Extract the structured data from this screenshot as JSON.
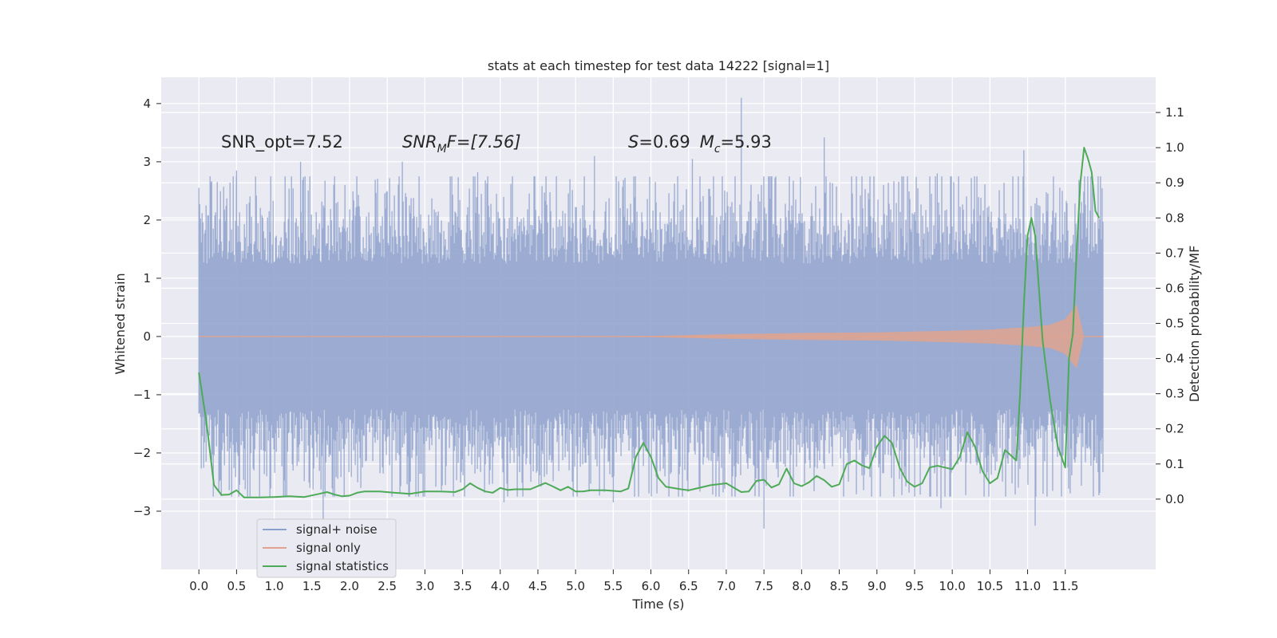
{
  "chart_data": {
    "type": "line",
    "title": "stats at each timestep for test data 14222 [signal=1]",
    "xlabel": "Time (s)",
    "ylabel": "Whitened strain",
    "ylabel_right": "Detection probability/MF",
    "xlim": [
      -0.5,
      12.7
    ],
    "ylim": [
      -4.0,
      4.45
    ],
    "ylim_right": [
      -0.2,
      1.2
    ],
    "x_ticks": [
      "0.0",
      "0.5",
      "1.0",
      "1.5",
      "2.0",
      "2.5",
      "3.0",
      "3.5",
      "4.0",
      "4.5",
      "5.0",
      "5.5",
      "6.0",
      "6.5",
      "7.0",
      "7.5",
      "8.0",
      "8.5",
      "9.0",
      "9.5",
      "10.0",
      "10.5",
      "11.0",
      "11.5"
    ],
    "y_ticks": [
      "4",
      "3",
      "2",
      "1",
      "0",
      "−1",
      "−2",
      "−3"
    ],
    "y_ticks_right": [
      "1.1",
      "1.0",
      "0.9",
      "0.8",
      "0.7",
      "0.6",
      "0.5",
      "0.4",
      "0.3",
      "0.2",
      "0.1",
      "0.0"
    ],
    "grid": true,
    "legend_position": "lower-left",
    "annotations": {
      "snr_opt": "SNR_opt=7.52",
      "snr_mf": {
        "main": "SNR",
        "sub": "M",
        "rest": "F=[7.56]"
      },
      "stat": {
        "s_label": "S",
        "s_value": "=0.69",
        "mc_label": "M",
        "mc_sub": "c",
        "mc_value": "=5.93"
      }
    },
    "series": [
      {
        "name": "signal+ noise",
        "color": "#8da0cb",
        "t_range": [
          0.0,
          12.0
        ],
        "band_std": 1.35,
        "spikes": [
          [
            0.5,
            2.85
          ],
          [
            1.35,
            3.0
          ],
          [
            2.7,
            3.0
          ],
          [
            3.7,
            2.82
          ],
          [
            5.25,
            3.1
          ],
          [
            6.55,
            3.05
          ],
          [
            7.2,
            4.1
          ],
          [
            8.3,
            3.42
          ],
          [
            9.8,
            2.8
          ],
          [
            10.95,
            3.2
          ],
          [
            11.7,
            2.1
          ],
          [
            1.65,
            -3.3
          ],
          [
            7.5,
            -3.3
          ],
          [
            11.1,
            -3.25
          ],
          [
            9.85,
            -2.95
          ],
          [
            4.05,
            -2.85
          ],
          [
            5.5,
            -2.85
          ]
        ]
      },
      {
        "name": "signal only",
        "color": "#e1a38f",
        "envelope": {
          "t": [
            0,
            5,
            6,
            7,
            8,
            9,
            10,
            10.5,
            11,
            11.3,
            11.5,
            11.65,
            11.75,
            12.0
          ],
          "amp": [
            0.0,
            0.0,
            0.01,
            0.04,
            0.06,
            0.07,
            0.1,
            0.12,
            0.16,
            0.2,
            0.3,
            0.55,
            0.0,
            0.0
          ]
        }
      },
      {
        "name": "signal statistics",
        "color": "#4daa57",
        "x": [
          0.0,
          0.1,
          0.2,
          0.3,
          0.4,
          0.5,
          0.6,
          0.8,
          1.0,
          1.2,
          1.4,
          1.6,
          1.7,
          1.8,
          1.9,
          2.0,
          2.1,
          2.2,
          2.4,
          2.6,
          2.8,
          3.0,
          3.2,
          3.4,
          3.5,
          3.6,
          3.7,
          3.8,
          3.9,
          4.0,
          4.1,
          4.2,
          4.4,
          4.6,
          4.7,
          4.8,
          4.9,
          5.0,
          5.1,
          5.2,
          5.4,
          5.6,
          5.7,
          5.8,
          5.9,
          6.0,
          6.1,
          6.2,
          6.4,
          6.5,
          6.6,
          6.8,
          7.0,
          7.2,
          7.3,
          7.4,
          7.5,
          7.6,
          7.7,
          7.8,
          7.9,
          8.0,
          8.1,
          8.2,
          8.3,
          8.4,
          8.5,
          8.6,
          8.7,
          8.8,
          8.9,
          9.0,
          9.1,
          9.2,
          9.3,
          9.4,
          9.5,
          9.6,
          9.7,
          9.8,
          9.9,
          10.0,
          10.1,
          10.2,
          10.3,
          10.4,
          10.5,
          10.6,
          10.7,
          10.8,
          10.85,
          10.9,
          10.95,
          11.0,
          11.05,
          11.1,
          11.15,
          11.2,
          11.3,
          11.4,
          11.5,
          11.55,
          11.6,
          11.65,
          11.7,
          11.75,
          11.8,
          11.85,
          11.9,
          11.95
        ],
        "values": [
          0.36,
          0.22,
          0.04,
          0.012,
          0.013,
          0.025,
          0.005,
          0.005,
          0.006,
          0.008,
          0.006,
          0.015,
          0.02,
          0.013,
          0.008,
          0.01,
          0.018,
          0.022,
          0.022,
          0.018,
          0.015,
          0.022,
          0.022,
          0.02,
          0.028,
          0.045,
          0.032,
          0.022,
          0.018,
          0.032,
          0.026,
          0.028,
          0.028,
          0.046,
          0.036,
          0.025,
          0.035,
          0.022,
          0.022,
          0.025,
          0.025,
          0.022,
          0.03,
          0.12,
          0.16,
          0.12,
          0.06,
          0.035,
          0.028,
          0.025,
          0.03,
          0.04,
          0.045,
          0.02,
          0.022,
          0.052,
          0.055,
          0.033,
          0.042,
          0.087,
          0.045,
          0.037,
          0.048,
          0.066,
          0.054,
          0.035,
          0.042,
          0.1,
          0.11,
          0.096,
          0.088,
          0.15,
          0.18,
          0.16,
          0.09,
          0.05,
          0.035,
          0.045,
          0.09,
          0.095,
          0.09,
          0.085,
          0.12,
          0.19,
          0.15,
          0.08,
          0.045,
          0.06,
          0.14,
          0.12,
          0.11,
          0.3,
          0.55,
          0.75,
          0.8,
          0.75,
          0.6,
          0.45,
          0.28,
          0.15,
          0.09,
          0.4,
          0.47,
          0.7,
          0.9,
          1.0,
          0.97,
          0.93,
          0.82,
          0.8
        ]
      }
    ]
  }
}
